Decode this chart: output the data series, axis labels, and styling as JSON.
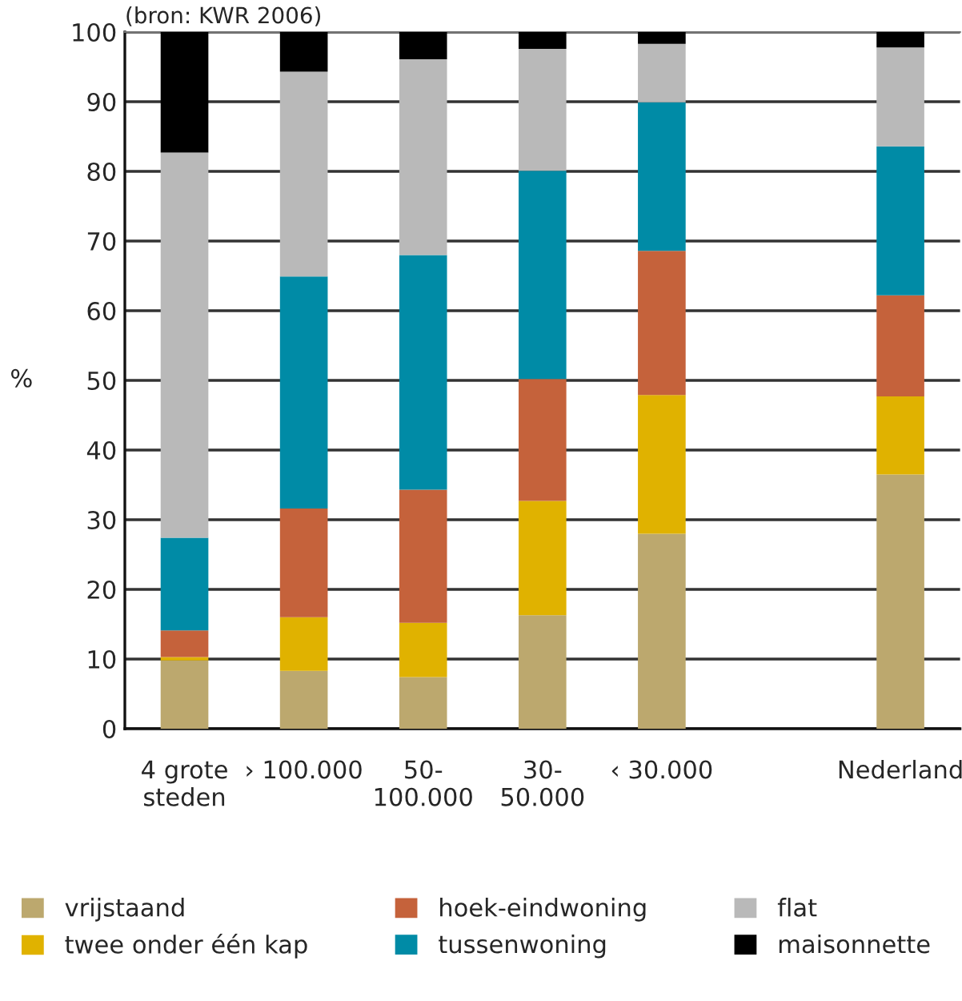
{
  "chart_data": {
    "type": "bar",
    "stacked": true,
    "categories": [
      "4 grote\nsteden",
      "› 100.000",
      "50-\n100.000",
      "30-\n50.000",
      "‹ 30.000",
      null,
      "Nederland"
    ],
    "series": [
      {
        "name": "vrijstaand",
        "color": "#bca86e",
        "values": [
          9.8,
          8.3,
          7.4,
          16.3,
          28.0,
          null,
          36.5
        ]
      },
      {
        "name": "twee onder één kap",
        "color": "#e0b200",
        "values": [
          0.5,
          7.7,
          7.8,
          16.4,
          19.9,
          null,
          11.2
        ]
      },
      {
        "name": "hoek-eindwoning",
        "color": "#c5623b",
        "values": [
          3.8,
          15.6,
          19.1,
          17.5,
          20.7,
          null,
          14.5
        ]
      },
      {
        "name": "tussenwoning",
        "color": "#008ba6",
        "values": [
          13.3,
          33.3,
          33.7,
          29.9,
          21.3,
          null,
          21.4
        ]
      },
      {
        "name": "flat",
        "color": "#b9b9b9",
        "values": [
          55.3,
          29.4,
          28.1,
          17.5,
          8.4,
          null,
          14.2
        ]
      },
      {
        "name": "maisonnette",
        "color": "#000000",
        "values": [
          17.3,
          5.7,
          3.9,
          2.4,
          1.7,
          null,
          2.2
        ]
      }
    ],
    "ylabel": "%",
    "ylim": [
      0,
      100
    ],
    "yticks": [
      0,
      10,
      20,
      30,
      40,
      50,
      60,
      70,
      80,
      90,
      100
    ],
    "grid": "y",
    "legend": "bottom",
    "annotations": [
      "(bron: KWR 2006)"
    ]
  }
}
